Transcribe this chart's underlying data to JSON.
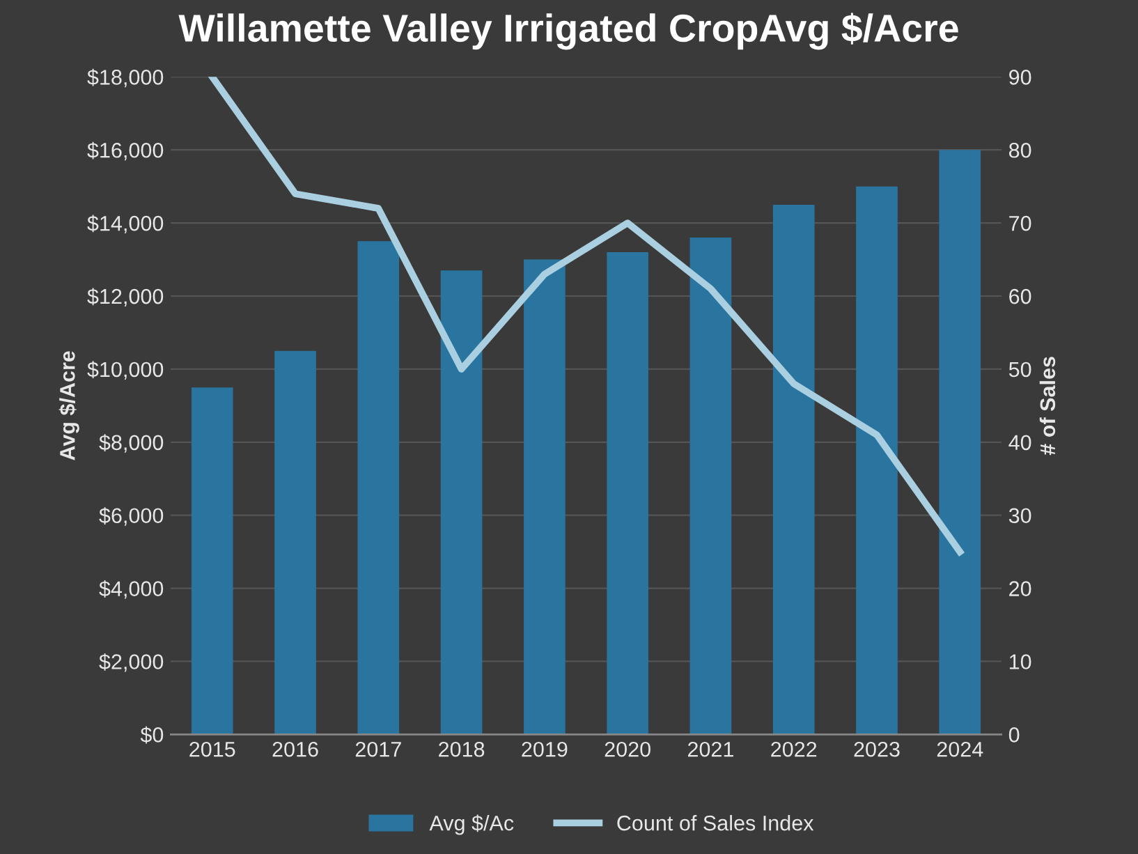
{
  "chart_data": {
    "type": "bar",
    "title": "Willamette Valley Irrigated CropAvg $/Acre",
    "ylabel": "Avg $/Acre",
    "y2label": "# of Sales",
    "categories": [
      "2015",
      "2016",
      "2017",
      "2018",
      "2019",
      "2020",
      "2021",
      "2022",
      "2023",
      "2024"
    ],
    "series": [
      {
        "name": "Avg $/Ac",
        "color": "#2a75a0",
        "values": [
          9500,
          10500,
          13500,
          12700,
          13000,
          13200,
          13600,
          14500,
          15000,
          16000
        ]
      },
      {
        "name": "Count of Sales Index",
        "type": "line",
        "axis": "y2",
        "color": "#a9cfe0",
        "values": [
          90,
          74,
          72,
          50,
          63,
          70,
          61,
          48,
          41,
          25
        ]
      }
    ],
    "ylim": [
      0,
      18000
    ],
    "yticks": [
      {
        "value": 0,
        "label": "$0"
      },
      {
        "value": 2000,
        "label": "$2,000"
      },
      {
        "value": 4000,
        "label": "$4,000"
      },
      {
        "value": 6000,
        "label": "$6,000"
      },
      {
        "value": 8000,
        "label": "$8,000"
      },
      {
        "value": 10000,
        "label": "$10,000"
      },
      {
        "value": 12000,
        "label": "$12,000"
      },
      {
        "value": 14000,
        "label": "$14,000"
      },
      {
        "value": 16000,
        "label": "$16,000"
      },
      {
        "value": 18000,
        "label": "$18,000"
      }
    ],
    "y2lim": [
      0,
      90
    ],
    "y2ticks": [
      0,
      10,
      20,
      30,
      40,
      50,
      60,
      70,
      80,
      90
    ],
    "grid": "y",
    "legend": "bottom",
    "marker": "none",
    "line_style": "solid"
  }
}
